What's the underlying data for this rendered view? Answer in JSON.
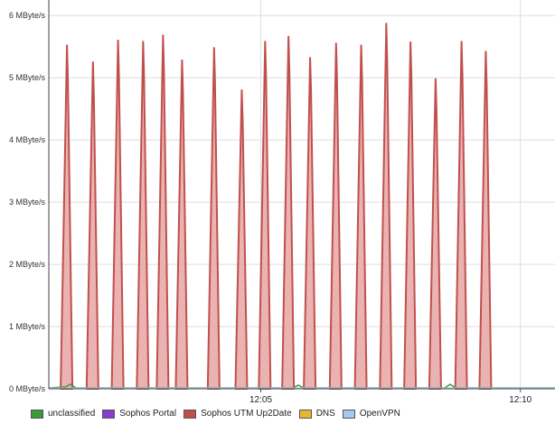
{
  "chart_data": {
    "type": "area",
    "ylabel": "",
    "xlabel": "",
    "ylim": [
      0,
      6.25
    ],
    "yunit_suffix": " MByte/s",
    "y_ticks": [
      {
        "value": 0,
        "label": "0 MByte/s"
      },
      {
        "value": 1,
        "label": "1 MByte/s"
      },
      {
        "value": 2,
        "label": "2 MByte/s"
      },
      {
        "value": 3,
        "label": "3 MByte/s"
      },
      {
        "value": 4,
        "label": "4 MByte/s"
      },
      {
        "value": 5,
        "label": "5 MByte/s"
      },
      {
        "value": 6,
        "label": "6 MByte/s"
      }
    ],
    "x_ticks": [
      {
        "time": "12:05",
        "label": "12:05"
      },
      {
        "time": "12:10",
        "label": "12:10"
      }
    ],
    "x_range": [
      "12:00:55",
      "12:10:40"
    ],
    "grid": true,
    "legend_position": "bottom-left",
    "series": [
      {
        "name": "Sophos UTM Up2Date",
        "color": "#c0504d",
        "fill": "#e6a6a4",
        "peaks": [
          {
            "time": "12:01:16",
            "value": 5.52
          },
          {
            "time": "12:01:46",
            "value": 5.25
          },
          {
            "time": "12:02:15",
            "value": 5.6
          },
          {
            "time": "12:02:44",
            "value": 5.58
          },
          {
            "time": "12:03:07",
            "value": 5.68
          },
          {
            "time": "12:03:29",
            "value": 5.28
          },
          {
            "time": "12:04:06",
            "value": 5.48
          },
          {
            "time": "12:04:38",
            "value": 4.8
          },
          {
            "time": "12:05:05",
            "value": 5.58
          },
          {
            "time": "12:05:32",
            "value": 5.66
          },
          {
            "time": "12:05:57",
            "value": 5.32
          },
          {
            "time": "12:06:27",
            "value": 5.55
          },
          {
            "time": "12:06:56",
            "value": 5.52
          },
          {
            "time": "12:07:25",
            "value": 5.87
          },
          {
            "time": "12:07:53",
            "value": 5.57
          },
          {
            "time": "12:08:22",
            "value": 4.98
          },
          {
            "time": "12:08:52",
            "value": 5.58
          },
          {
            "time": "12:09:20",
            "value": 5.42
          }
        ]
      },
      {
        "name": "unclassified",
        "color": "#3a9a3a",
        "values": "near zero"
      },
      {
        "name": "Sophos Portal",
        "color": "#8a3ccf",
        "values": "near zero"
      },
      {
        "name": "DNS",
        "color": "#e8b530",
        "values": "near zero"
      },
      {
        "name": "OpenVPN",
        "color": "#a8c8ec",
        "values": "near zero"
      }
    ]
  },
  "legend": [
    {
      "label": "unclassified",
      "color": "#3a9a3a"
    },
    {
      "label": "Sophos Portal",
      "color": "#8a3ccf"
    },
    {
      "label": "Sophos UTM Up2Date",
      "color": "#c0504d"
    },
    {
      "label": "DNS",
      "color": "#e8b530"
    },
    {
      "label": "OpenVPN",
      "color": "#a8c8ec"
    }
  ]
}
